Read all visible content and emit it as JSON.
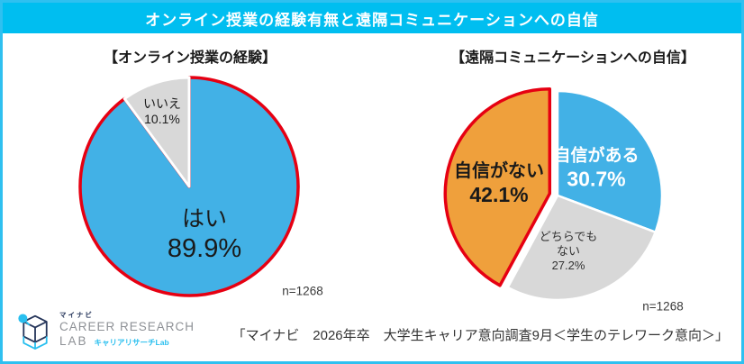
{
  "frame": {
    "border_color": "#2FC0F0",
    "background": "#FFFFFF"
  },
  "header": {
    "title": "オンライン授業の経験有無と遠隔コミュニケーションへの自信",
    "background": "#00BEF0",
    "text_color": "#FFFFFF"
  },
  "chart_data": [
    {
      "type": "pie",
      "title": "【オンライン授業の経験】",
      "n_label": "n=1268",
      "start_angle_deg": 0,
      "direction": "clockwise",
      "slices": [
        {
          "label": "はい",
          "value": 89.9,
          "percent_label": "89.9%",
          "color": "#42B1E6",
          "stroke": "#E60012",
          "stroke_width": 3.5,
          "explode": 0,
          "label_color": "#1A1A1A"
        },
        {
          "label": "いいえ",
          "value": 10.1,
          "percent_label": "10.1%",
          "color": "#D8D8D8",
          "stroke": "#FFFFFF",
          "stroke_width": 3,
          "explode": 0,
          "label_color": "#1A1A1A"
        }
      ]
    },
    {
      "type": "pie",
      "title": "【遠隔コミュニケーションへの自信】",
      "n_label": "n=1268",
      "start_angle_deg": 0,
      "direction": "clockwise",
      "slices": [
        {
          "label": "自信がある",
          "value": 30.7,
          "percent_label": "30.7%",
          "color": "#42B1E6",
          "stroke": "#FFFFFF",
          "stroke_width": 2.5,
          "explode": 0,
          "label_color": "#FFFFFF"
        },
        {
          "label": "どちらでも ない",
          "value": 27.2,
          "percent_label": "27.2%",
          "color": "#D8D8D8",
          "stroke": "#FFFFFF",
          "stroke_width": 2.5,
          "explode": 0,
          "label_color": "#333333"
        },
        {
          "label": "自信がない",
          "value": 42.1,
          "percent_label": "42.1%",
          "color": "#EFA03C",
          "stroke": "#E60012",
          "stroke_width": 3.5,
          "explode": 9,
          "label_color": "#1A1A1A"
        }
      ]
    }
  ],
  "footer": {
    "source": "「マイナビ　2026年卒　大学生キャリア意向調査9月＜学生のテレワーク意向＞」",
    "logo": {
      "brand_small": "マイナビ",
      "brand_line1": "CAREER RESEARCH",
      "brand_line2": "LAB",
      "brand_sub": "キャリアリサーチLab",
      "accent_color": "#29BFEF",
      "navy_color": "#25355A"
    }
  }
}
